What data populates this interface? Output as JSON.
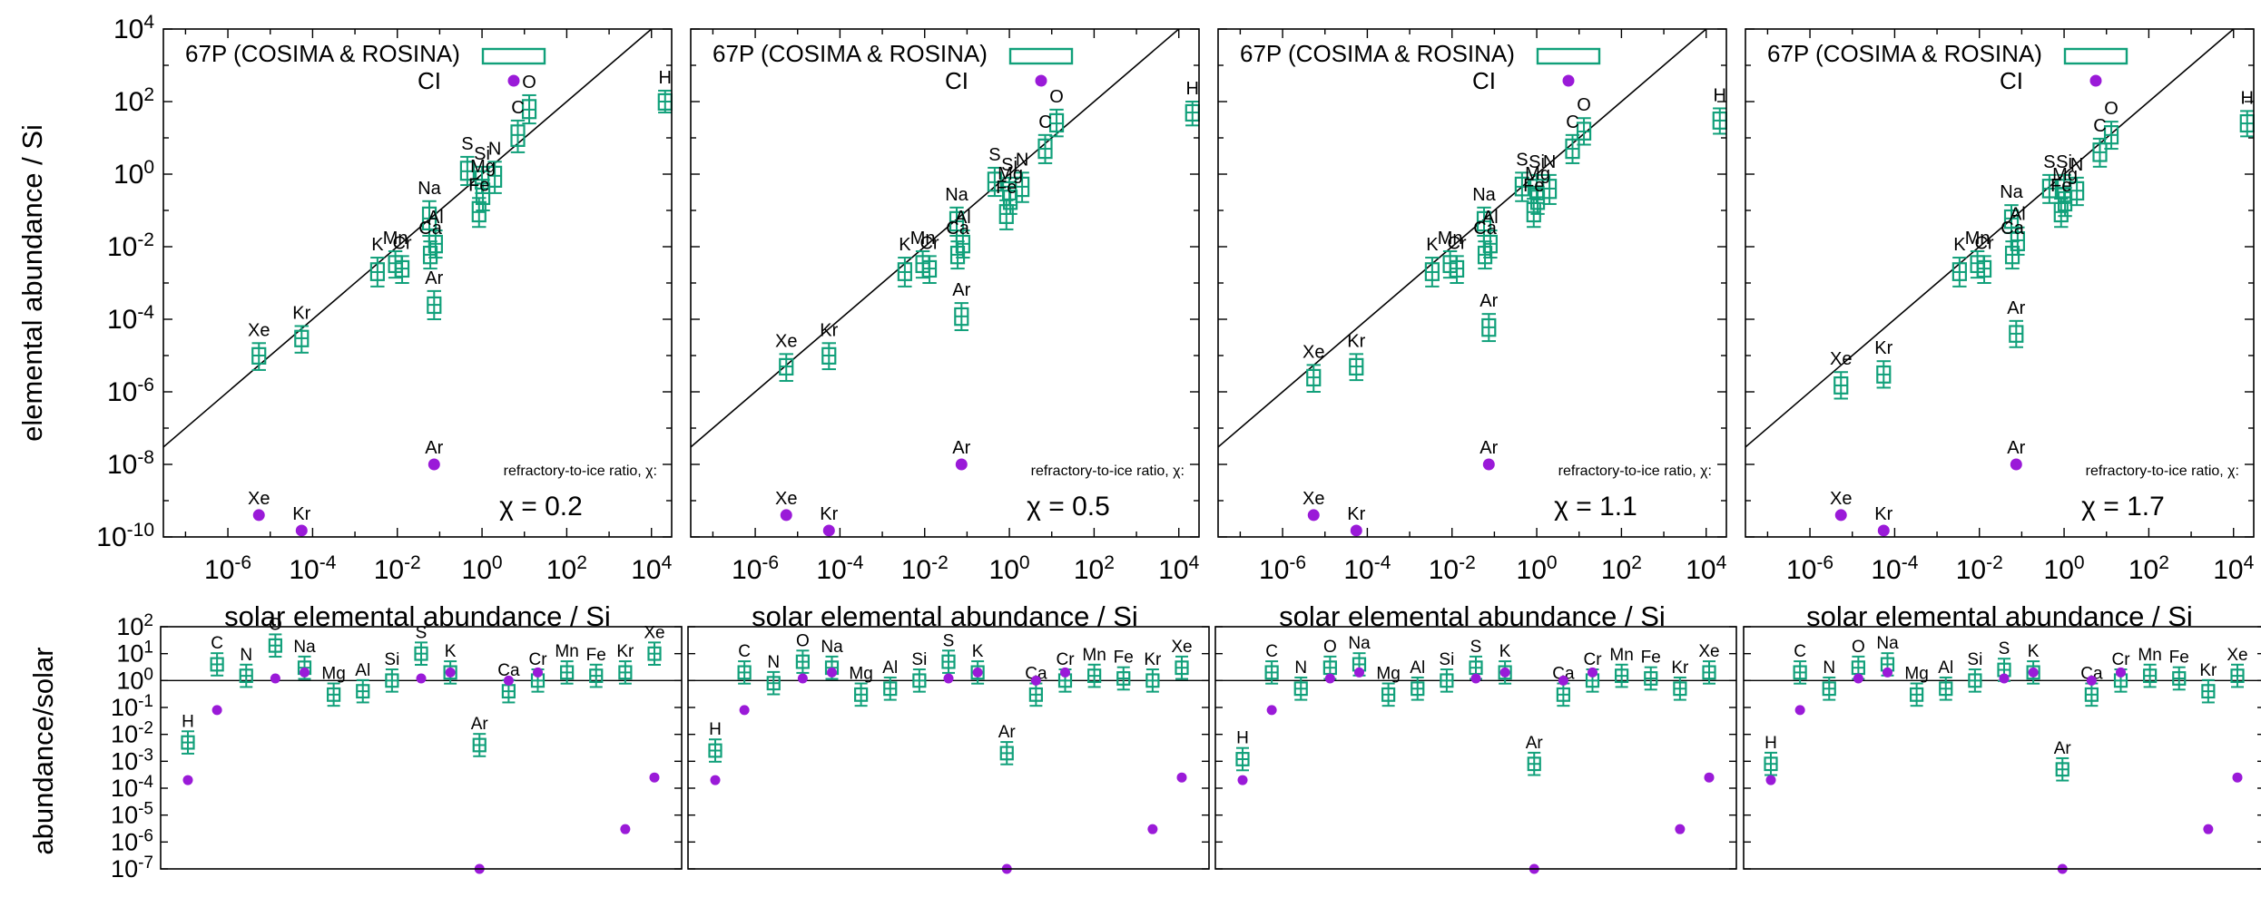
{
  "colors": {
    "comet": "#11a07a",
    "ci": "#9a1ad8"
  },
  "legend": {
    "comet": "67P (COSIMA & ROSINA)",
    "ci": "CI"
  },
  "axis_labels": {
    "top_y": "elemental abundance / Si",
    "top_x": "solar elemental abundance / Si",
    "bottom_y": "abundance/solar"
  },
  "annotation_label": "refractory-to-ice ratio, χ:",
  "panel_labels": [
    "χ = 0.2",
    "χ = 0.5",
    "χ = 1.1",
    "χ = 1.7"
  ],
  "chart_data": [
    {
      "type": "scatter",
      "panel": "upper, χ = 0.2",
      "x_scale": "log",
      "y_scale": "log",
      "xlim": [
        3e-08,
        30000.0
      ],
      "ylim": [
        1e-10,
        10000.0
      ],
      "x_tick_labels": [
        "10-6",
        "10-4",
        "10-2",
        "100",
        "102",
        "104"
      ],
      "y_tick_labels": [
        "10-10",
        "10-8",
        "10-6",
        "10-4",
        "10-2",
        "100",
        "102",
        "104"
      ],
      "reference_line": "y = x",
      "comet_boxes": [
        {
          "el": "H",
          "x": 21000,
          "y": 100,
          "lo": 60,
          "hi": 160,
          "wlo": 50,
          "whi": 200
        },
        {
          "el": "O",
          "x": 13,
          "y": 60,
          "lo": 35,
          "hi": 110,
          "wlo": 25,
          "whi": 150
        },
        {
          "el": "C",
          "x": 7,
          "y": 12,
          "lo": 6,
          "hi": 22,
          "wlo": 4,
          "whi": 30
        },
        {
          "el": "N",
          "x": 2,
          "y": 0.9,
          "lo": 0.45,
          "hi": 1.6,
          "wlo": 0.3,
          "whi": 2.2
        },
        {
          "el": "S",
          "x": 0.45,
          "y": 1.2,
          "lo": 0.7,
          "hi": 2.2,
          "wlo": 0.5,
          "whi": 3
        },
        {
          "el": "Si",
          "x": 1,
          "y": 0.7,
          "lo": 0.4,
          "hi": 1.2,
          "wlo": 0.3,
          "whi": 1.6
        },
        {
          "el": "Mg",
          "x": 1.05,
          "y": 0.3,
          "lo": 0.15,
          "hi": 0.55,
          "wlo": 0.1,
          "whi": 0.7
        },
        {
          "el": "Fe",
          "x": 0.85,
          "y": 0.09,
          "lo": 0.05,
          "hi": 0.17,
          "wlo": 0.035,
          "whi": 0.22
        },
        {
          "el": "Na",
          "x": 0.057,
          "y": 0.06,
          "lo": 0.03,
          "hi": 0.12,
          "wlo": 0.02,
          "whi": 0.18
        },
        {
          "el": "Al",
          "x": 0.08,
          "y": 0.012,
          "lo": 0.007,
          "hi": 0.02,
          "wlo": 0.005,
          "whi": 0.028
        },
        {
          "el": "Ca",
          "x": 0.06,
          "y": 0.006,
          "lo": 0.0035,
          "hi": 0.01,
          "wlo": 0.0025,
          "whi": 0.014
        },
        {
          "el": "K",
          "x": 0.0034,
          "y": 0.002,
          "lo": 0.0012,
          "hi": 0.0035,
          "wlo": 0.0008,
          "whi": 0.005
        },
        {
          "el": "Mn",
          "x": 0.009,
          "y": 0.0035,
          "lo": 0.002,
          "hi": 0.0055,
          "wlo": 0.0014,
          "whi": 0.0075
        },
        {
          "el": "Cr",
          "x": 0.013,
          "y": 0.0025,
          "lo": 0.0015,
          "hi": 0.004,
          "wlo": 0.001,
          "whi": 0.0055
        },
        {
          "el": "Ar",
          "x": 0.074,
          "y": 0.00025,
          "lo": 0.00015,
          "hi": 0.0004,
          "wlo": 0.0001,
          "whi": 0.0006
        },
        {
          "el": "Kr",
          "x": 5.5e-05,
          "y": 3e-05,
          "lo": 1.8e-05,
          "hi": 4.8e-05,
          "wlo": 1.2e-05,
          "whi": 6.5e-05
        },
        {
          "el": "Xe",
          "x": 5.4e-06,
          "y": 1e-05,
          "lo": 6e-06,
          "hi": 1.6e-05,
          "wlo": 4e-06,
          "whi": 2.2e-05
        }
      ],
      "ci_points": [
        {
          "el": "Ar",
          "x": 0.074,
          "y": 1e-08
        },
        {
          "el": "Xe",
          "x": 5.4e-06,
          "y": 4e-10
        },
        {
          "el": "Kr",
          "x": 5.5e-05,
          "y": 1.5e-10
        }
      ]
    },
    {
      "type": "scatter",
      "panel": "upper, χ = 0.5",
      "x_scale": "log",
      "y_scale": "log",
      "xlim": [
        3e-08,
        30000.0
      ],
      "ylim": [
        1e-10,
        10000.0
      ],
      "reference_line": "y = x",
      "comet_boxes": [
        {
          "el": "H",
          "x": 21000,
          "y": 50,
          "lo": 30,
          "hi": 80,
          "wlo": 22,
          "whi": 100
        },
        {
          "el": "O",
          "x": 13,
          "y": 25,
          "lo": 15,
          "hi": 45,
          "wlo": 11,
          "whi": 60
        },
        {
          "el": "C",
          "x": 7,
          "y": 5,
          "lo": 2.8,
          "hi": 9,
          "wlo": 2,
          "whi": 12
        },
        {
          "el": "N",
          "x": 2,
          "y": 0.45,
          "lo": 0.25,
          "hi": 0.8,
          "wlo": 0.17,
          "whi": 1.1
        },
        {
          "el": "S",
          "x": 0.45,
          "y": 0.6,
          "lo": 0.35,
          "hi": 1.1,
          "wlo": 0.25,
          "whi": 1.5
        },
        {
          "el": "Si",
          "x": 1,
          "y": 0.35,
          "lo": 0.2,
          "hi": 0.6,
          "wlo": 0.14,
          "whi": 0.8
        },
        {
          "el": "Mg",
          "x": 1.05,
          "y": 0.2,
          "lo": 0.11,
          "hi": 0.35,
          "wlo": 0.08,
          "whi": 0.45
        },
        {
          "el": "Fe",
          "x": 0.85,
          "y": 0.08,
          "lo": 0.045,
          "hi": 0.14,
          "wlo": 0.03,
          "whi": 0.19
        },
        {
          "el": "Na",
          "x": 0.057,
          "y": 0.05,
          "lo": 0.028,
          "hi": 0.09,
          "wlo": 0.02,
          "whi": 0.12
        },
        {
          "el": "Al",
          "x": 0.08,
          "y": 0.012,
          "lo": 0.007,
          "hi": 0.02,
          "wlo": 0.005,
          "whi": 0.028
        },
        {
          "el": "Ca",
          "x": 0.06,
          "y": 0.006,
          "lo": 0.0035,
          "hi": 0.01,
          "wlo": 0.0025,
          "whi": 0.014
        },
        {
          "el": "K",
          "x": 0.0034,
          "y": 0.002,
          "lo": 0.0012,
          "hi": 0.0035,
          "wlo": 0.0008,
          "whi": 0.005
        },
        {
          "el": "Mn",
          "x": 0.009,
          "y": 0.0035,
          "lo": 0.002,
          "hi": 0.0055,
          "wlo": 0.0014,
          "whi": 0.0075
        },
        {
          "el": "Cr",
          "x": 0.013,
          "y": 0.0025,
          "lo": 0.0015,
          "hi": 0.004,
          "wlo": 0.001,
          "whi": 0.0055
        },
        {
          "el": "Ar",
          "x": 0.074,
          "y": 0.00012,
          "lo": 7e-05,
          "hi": 0.0002,
          "wlo": 5e-05,
          "whi": 0.00028
        },
        {
          "el": "Kr",
          "x": 5.5e-05,
          "y": 1e-05,
          "lo": 6e-06,
          "hi": 1.6e-05,
          "wlo": 4.2e-06,
          "whi": 2.2e-05
        },
        {
          "el": "Xe",
          "x": 5.4e-06,
          "y": 5e-06,
          "lo": 3e-06,
          "hi": 8e-06,
          "wlo": 2e-06,
          "whi": 1.1e-05
        }
      ],
      "ci_points": [
        {
          "el": "Ar",
          "x": 0.074,
          "y": 1e-08
        },
        {
          "el": "Xe",
          "x": 5.4e-06,
          "y": 4e-10
        },
        {
          "el": "Kr",
          "x": 5.5e-05,
          "y": 1.5e-10
        }
      ]
    },
    {
      "type": "scatter",
      "panel": "upper, χ = 1.1",
      "x_scale": "log",
      "y_scale": "log",
      "xlim": [
        3e-08,
        30000.0
      ],
      "ylim": [
        1e-10,
        10000.0
      ],
      "reference_line": "y = x",
      "comet_boxes": [
        {
          "el": "H",
          "x": 21000,
          "y": 30,
          "lo": 18,
          "hi": 50,
          "wlo": 13,
          "whi": 65
        },
        {
          "el": "O",
          "x": 13,
          "y": 15,
          "lo": 9,
          "hi": 26,
          "wlo": 6.5,
          "whi": 35
        },
        {
          "el": "C",
          "x": 7,
          "y": 5,
          "lo": 2.8,
          "hi": 9,
          "wlo": 2,
          "whi": 12
        },
        {
          "el": "N",
          "x": 2,
          "y": 0.4,
          "lo": 0.22,
          "hi": 0.7,
          "wlo": 0.15,
          "whi": 0.95
        },
        {
          "el": "S",
          "x": 0.45,
          "y": 0.45,
          "lo": 0.26,
          "hi": 0.8,
          "wlo": 0.18,
          "whi": 1.1
        },
        {
          "el": "Si",
          "x": 1,
          "y": 0.4,
          "lo": 0.23,
          "hi": 0.7,
          "wlo": 0.16,
          "whi": 0.95
        },
        {
          "el": "Mg",
          "x": 1.05,
          "y": 0.2,
          "lo": 0.11,
          "hi": 0.35,
          "wlo": 0.08,
          "whi": 0.45
        },
        {
          "el": "Fe",
          "x": 0.85,
          "y": 0.09,
          "lo": 0.05,
          "hi": 0.16,
          "wlo": 0.035,
          "whi": 0.21
        },
        {
          "el": "Na",
          "x": 0.057,
          "y": 0.05,
          "lo": 0.028,
          "hi": 0.09,
          "wlo": 0.02,
          "whi": 0.12
        },
        {
          "el": "Al",
          "x": 0.08,
          "y": 0.012,
          "lo": 0.007,
          "hi": 0.02,
          "wlo": 0.005,
          "whi": 0.028
        },
        {
          "el": "Ca",
          "x": 0.06,
          "y": 0.006,
          "lo": 0.0035,
          "hi": 0.01,
          "wlo": 0.0025,
          "whi": 0.014
        },
        {
          "el": "K",
          "x": 0.0034,
          "y": 0.002,
          "lo": 0.0012,
          "hi": 0.0035,
          "wlo": 0.0008,
          "whi": 0.005
        },
        {
          "el": "Mn",
          "x": 0.009,
          "y": 0.0035,
          "lo": 0.002,
          "hi": 0.0055,
          "wlo": 0.0014,
          "whi": 0.0075
        },
        {
          "el": "Cr",
          "x": 0.013,
          "y": 0.0025,
          "lo": 0.0015,
          "hi": 0.004,
          "wlo": 0.001,
          "whi": 0.0055
        },
        {
          "el": "Ar",
          "x": 0.074,
          "y": 6e-05,
          "lo": 3.5e-05,
          "hi": 0.0001,
          "wlo": 2.5e-05,
          "whi": 0.00014
        },
        {
          "el": "Kr",
          "x": 5.5e-05,
          "y": 5e-06,
          "lo": 3e-06,
          "hi": 8e-06,
          "wlo": 2.1e-06,
          "whi": 1.1e-05
        },
        {
          "el": "Xe",
          "x": 5.4e-06,
          "y": 2.5e-06,
          "lo": 1.5e-06,
          "hi": 4e-06,
          "wlo": 1e-06,
          "whi": 5.5e-06
        }
      ],
      "ci_points": [
        {
          "el": "Ar",
          "x": 0.074,
          "y": 1e-08
        },
        {
          "el": "Xe",
          "x": 5.4e-06,
          "y": 4e-10
        },
        {
          "el": "Kr",
          "x": 5.5e-05,
          "y": 1.5e-10
        }
      ]
    },
    {
      "type": "scatter",
      "panel": "upper, χ = 1.7",
      "x_scale": "log",
      "y_scale": "log",
      "xlim": [
        3e-08,
        30000.0
      ],
      "ylim": [
        1e-10,
        10000.0
      ],
      "reference_line": "y = x",
      "comet_boxes": [
        {
          "el": "H",
          "x": 21000,
          "y": 25,
          "lo": 15,
          "hi": 42,
          "wlo": 11,
          "whi": 55
        },
        {
          "el": "O",
          "x": 13,
          "y": 12,
          "lo": 7,
          "hi": 21,
          "wlo": 5,
          "whi": 28
        },
        {
          "el": "C",
          "x": 7,
          "y": 4,
          "lo": 2.3,
          "hi": 7,
          "wlo": 1.6,
          "whi": 9.5
        },
        {
          "el": "N",
          "x": 2,
          "y": 0.35,
          "lo": 0.2,
          "hi": 0.6,
          "wlo": 0.14,
          "whi": 0.8
        },
        {
          "el": "S",
          "x": 0.45,
          "y": 0.4,
          "lo": 0.23,
          "hi": 0.7,
          "wlo": 0.16,
          "whi": 0.95
        },
        {
          "el": "Si",
          "x": 1,
          "y": 0.4,
          "lo": 0.23,
          "hi": 0.7,
          "wlo": 0.16,
          "whi": 0.95
        },
        {
          "el": "Mg",
          "x": 1.05,
          "y": 0.18,
          "lo": 0.1,
          "hi": 0.32,
          "wlo": 0.07,
          "whi": 0.42
        },
        {
          "el": "Fe",
          "x": 0.85,
          "y": 0.09,
          "lo": 0.05,
          "hi": 0.16,
          "wlo": 0.035,
          "whi": 0.21
        },
        {
          "el": "Na",
          "x": 0.057,
          "y": 0.06,
          "lo": 0.033,
          "hi": 0.1,
          "wlo": 0.024,
          "whi": 0.14
        },
        {
          "el": "Al",
          "x": 0.08,
          "y": 0.015,
          "lo": 0.008,
          "hi": 0.025,
          "wlo": 0.006,
          "whi": 0.034
        },
        {
          "el": "Ca",
          "x": 0.06,
          "y": 0.006,
          "lo": 0.0035,
          "hi": 0.01,
          "wlo": 0.0025,
          "whi": 0.014
        },
        {
          "el": "K",
          "x": 0.0034,
          "y": 0.002,
          "lo": 0.0012,
          "hi": 0.0035,
          "wlo": 0.0008,
          "whi": 0.005
        },
        {
          "el": "Mn",
          "x": 0.009,
          "y": 0.0035,
          "lo": 0.002,
          "hi": 0.0055,
          "wlo": 0.0014,
          "whi": 0.0075
        },
        {
          "el": "Cr",
          "x": 0.013,
          "y": 0.0025,
          "lo": 0.0015,
          "hi": 0.004,
          "wlo": 0.001,
          "whi": 0.0055
        },
        {
          "el": "Ar",
          "x": 0.074,
          "y": 4e-05,
          "lo": 2.4e-05,
          "hi": 6.5e-05,
          "wlo": 1.7e-05,
          "whi": 9e-05
        },
        {
          "el": "Kr",
          "x": 5.5e-05,
          "y": 3e-06,
          "lo": 1.8e-06,
          "hi": 5e-06,
          "wlo": 1.3e-06,
          "whi": 7e-06
        },
        {
          "el": "Xe",
          "x": 5.4e-06,
          "y": 1.5e-06,
          "lo": 9e-07,
          "hi": 2.5e-06,
          "wlo": 6.5e-07,
          "whi": 3.5e-06
        }
      ],
      "ci_points": [
        {
          "el": "Ar",
          "x": 0.074,
          "y": 1e-08
        },
        {
          "el": "Xe",
          "x": 5.4e-06,
          "y": 4e-10
        },
        {
          "el": "Kr",
          "x": 5.5e-05,
          "y": 1.5e-10
        }
      ]
    },
    {
      "type": "scatter",
      "panel": "lower, χ = 0.2",
      "y_scale": "log",
      "ylim": [
        1e-07,
        100
      ],
      "y_tick_labels": [
        "102",
        "101",
        "100",
        "10-1",
        "10-2",
        "10-3",
        "10-4",
        "10-5",
        "10-6",
        "10-7"
      ],
      "categories": [
        "H",
        "C",
        "N",
        "O",
        "Na",
        "Mg",
        "Al",
        "Si",
        "S",
        "K",
        "Ar",
        "Ca",
        "Cr",
        "Mn",
        "Fe",
        "Kr",
        "Xe"
      ],
      "reference_line": "y = 1",
      "comet_ratio": [
        0.005,
        4,
        1.5,
        20,
        3,
        0.3,
        0.4,
        1,
        10,
        2,
        0.004,
        0.4,
        1,
        2,
        1.5,
        2,
        10
      ],
      "ci_ratio": [
        0.0002,
        0.08,
        null,
        1.2,
        2,
        null,
        null,
        null,
        1.2,
        2,
        1e-07,
        1,
        2,
        null,
        null,
        3e-06,
        0.00025
      ]
    },
    {
      "type": "scatter",
      "panel": "lower, χ = 0.5",
      "y_scale": "log",
      "ylim": [
        1e-07,
        100
      ],
      "categories": [
        "H",
        "C",
        "N",
        "O",
        "Na",
        "Mg",
        "Al",
        "Si",
        "S",
        "K",
        "Ar",
        "Ca",
        "Cr",
        "Mn",
        "Fe",
        "Kr",
        "Xe"
      ],
      "reference_line": "y = 1",
      "comet_ratio": [
        0.0025,
        2,
        0.8,
        5,
        3,
        0.3,
        0.5,
        1,
        5,
        2,
        0.002,
        0.3,
        1,
        1.5,
        1.2,
        1,
        3
      ],
      "ci_ratio": [
        0.0002,
        0.08,
        null,
        1.2,
        2,
        null,
        null,
        null,
        1.2,
        2,
        1e-07,
        1,
        2,
        null,
        null,
        3e-06,
        0.00025
      ]
    },
    {
      "type": "scatter",
      "panel": "lower, χ = 1.1",
      "y_scale": "log",
      "ylim": [
        1e-07,
        100
      ],
      "categories": [
        "H",
        "C",
        "N",
        "O",
        "Na",
        "Mg",
        "Al",
        "Si",
        "S",
        "K",
        "Ar",
        "Ca",
        "Cr",
        "Mn",
        "Fe",
        "Kr",
        "Xe"
      ],
      "reference_line": "y = 1",
      "comet_ratio": [
        0.0012,
        2,
        0.5,
        3,
        4,
        0.3,
        0.5,
        1,
        3,
        2,
        0.0008,
        0.3,
        1,
        1.5,
        1.2,
        0.5,
        2
      ],
      "ci_ratio": [
        0.0002,
        0.08,
        null,
        1.2,
        2,
        null,
        null,
        null,
        1.2,
        2,
        1e-07,
        1,
        2,
        null,
        null,
        3e-06,
        0.00025
      ]
    },
    {
      "type": "scatter",
      "panel": "lower, χ = 1.7",
      "y_scale": "log",
      "ylim": [
        1e-07,
        100
      ],
      "categories": [
        "H",
        "C",
        "N",
        "O",
        "Na",
        "Mg",
        "Al",
        "Si",
        "S",
        "K",
        "Ar",
        "Ca",
        "Cr",
        "Mn",
        "Fe",
        "Kr",
        "Xe"
      ],
      "reference_line": "y = 1",
      "comet_ratio": [
        0.0008,
        2,
        0.5,
        3,
        4,
        0.3,
        0.5,
        1,
        2.5,
        2,
        0.0005,
        0.3,
        1,
        1.5,
        1.2,
        0.4,
        1.5
      ],
      "ci_ratio": [
        0.0002,
        0.08,
        null,
        1.2,
        2,
        null,
        null,
        null,
        1.2,
        2,
        1e-07,
        1,
        2,
        null,
        null,
        3e-06,
        0.00025
      ]
    }
  ]
}
